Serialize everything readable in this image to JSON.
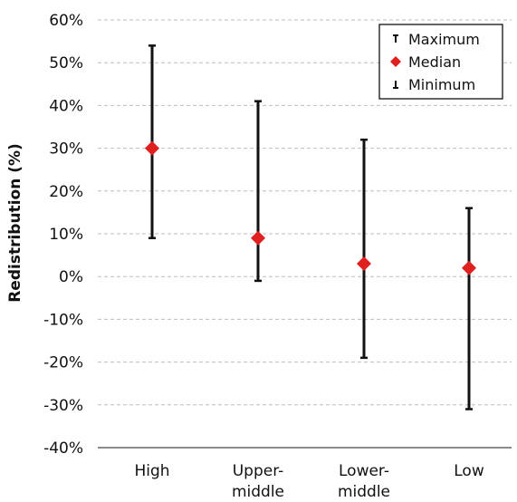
{
  "chart_data": {
    "type": "range",
    "title": "",
    "ylabel": "Redistribution (%)",
    "xlabel": "",
    "ylim": [
      -40,
      60
    ],
    "yticks": [
      60,
      50,
      40,
      30,
      20,
      10,
      0,
      -10,
      -20,
      -30,
      -40
    ],
    "ytick_labels": [
      "60%",
      "50%",
      "40%",
      "30%",
      "20%",
      "10%",
      "0%",
      "-10%",
      "-20%",
      "-30%",
      "-40%"
    ],
    "grid": true,
    "legend_position": "top-right",
    "legend": [
      {
        "key": "maximum",
        "label": "Maximum"
      },
      {
        "key": "median",
        "label": "Median"
      },
      {
        "key": "minimum",
        "label": "Minimum"
      }
    ],
    "categories": [
      {
        "id": "high",
        "lines": [
          "High"
        ],
        "maximum": 54,
        "median": 30,
        "minimum": 9
      },
      {
        "id": "upper-middle",
        "lines": [
          "Upper-",
          "middle"
        ],
        "maximum": 41,
        "median": 9,
        "minimum": -1
      },
      {
        "id": "lower-middle",
        "lines": [
          "Lower-",
          "middle"
        ],
        "maximum": 32,
        "median": 3,
        "minimum": -19
      },
      {
        "id": "low",
        "lines": [
          "Low"
        ],
        "maximum": 16,
        "median": 2,
        "minimum": -31
      }
    ],
    "colors": {
      "median": "#e0201f",
      "range": "#111111"
    }
  }
}
